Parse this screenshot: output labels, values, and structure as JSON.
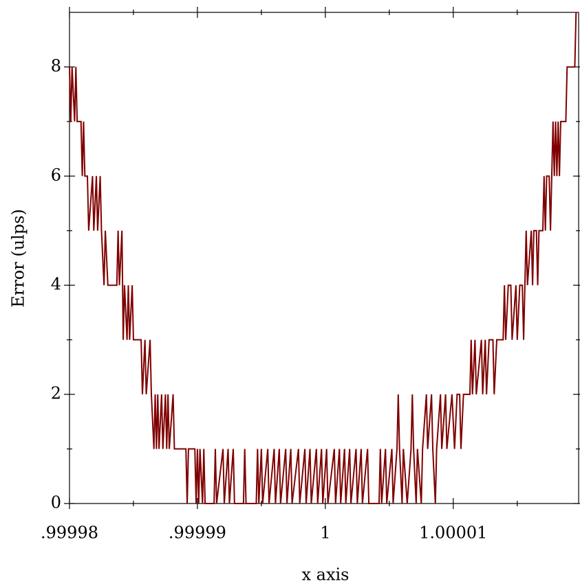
{
  "chart_data": {
    "type": "line",
    "xlabel": "x axis",
    "ylabel": "Error (ulps)",
    "xlim": [
      0.99998,
      1.0000198
    ],
    "ylim": [
      0,
      9
    ],
    "xticks": [
      {
        "value": 0.99998,
        "label": ".99998"
      },
      {
        "value": 0.99999,
        "label": ".99999"
      },
      1,
      1.00001
    ],
    "yticks": [
      0,
      2,
      4,
      6,
      8
    ],
    "xminorticks": [
      0.999985,
      0.999995,
      1.000005,
      1.000015
    ],
    "yminorticks": [
      1,
      3,
      5,
      7
    ],
    "x": [
      0.99998,
      0.9999801,
      0.9999802,
      0.9999804,
      0.9999805,
      0.9999806,
      0.9999809,
      0.999981,
      0.9999811,
      0.9999812,
      0.9999814,
      0.9999815,
      0.9999818,
      0.9999819,
      0.9999821,
      0.9999822,
      0.9999824,
      0.9999825,
      0.9999827,
      0.9999828,
      0.999983,
      0.9999837,
      0.9999838,
      0.9999839,
      0.9999841,
      0.9999842,
      0.9999843,
      0.9999845,
      0.9999846,
      0.9999847,
      0.9999849,
      0.999985,
      0.9999856,
      0.9999857,
      0.9999859,
      0.999986,
      0.9999863,
      0.9999864,
      0.9999866,
      0.9999867,
      0.9999868,
      0.9999869,
      0.999987,
      0.9999872,
      0.9999873,
      0.9999875,
      0.9999876,
      0.9999877,
      0.9999878,
      0.9999881,
      0.9999882,
      0.9999891,
      0.9999892,
      0.9999893,
      0.9999898,
      0.9999899,
      0.99999,
      0.9999901,
      0.9999902,
      0.9999904,
      0.9999905,
      0.9999906,
      0.9999913,
      0.9999914,
      0.9999915,
      0.999992,
      0.9999921,
      0.9999924,
      0.9999925,
      0.9999928,
      0.9999929,
      0.9999936,
      0.9999937,
      0.9999938,
      0.9999946,
      0.9999947,
      0.9999948,
      0.999995,
      0.9999951,
      0.9999955,
      0.9999956,
      0.999996,
      0.9999961,
      0.9999964,
      0.9999965,
      0.9999969,
      0.999997,
      0.9999973,
      0.9999974,
      0.9999979,
      0.999998,
      0.9999984,
      0.9999985,
      0.9999988,
      0.9999989,
      0.9999993,
      0.9999994,
      0.9999997,
      0.9999998,
      1.0000001,
      1.0000002,
      1.0000007,
      1.0000008,
      1.0000011,
      1.0000012,
      1.0000015,
      1.0000016,
      1.0000019,
      1.000002,
      1.0000024,
      1.0000025,
      1.0000028,
      1.0000029,
      1.0000033,
      1.0000034,
      1.0000042,
      1.0000043,
      1.0000044,
      1.0000047,
      1.0000048,
      1.0000052,
      1.0000053,
      1.0000056,
      1.0000057,
      1.0000058,
      1.000006,
      1.0000061,
      1.0000064,
      1.0000067,
      1.0000068,
      1.0000069,
      1.0000071,
      1.0000072,
      1.0000075,
      1.0000076,
      1.0000079,
      1.000008,
      1.0000083,
      1.0000084,
      1.0000086,
      1.0000087,
      1.000009,
      1.0000091,
      1.0000094,
      1.0000095,
      1.0000099,
      1.0000101,
      1.0000103,
      1.0000105,
      1.0000106,
      1.0000108,
      1.0000113,
      1.0000114,
      1.0000115,
      1.0000117,
      1.0000118,
      1.0000122,
      1.0000123,
      1.0000125,
      1.0000126,
      1.0000128,
      1.0000131,
      1.0000132,
      1.0000134,
      1.0000139,
      1.000014,
      1.0000141,
      1.0000143,
      1.0000145,
      1.0000146,
      1.0000149,
      1.000015,
      1.0000152,
      1.0000154,
      1.0000155,
      1.0000156,
      1.0000157,
      1.0000158,
      1.0000161,
      1.0000162,
      1.0000163,
      1.0000165,
      1.0000166,
      1.0000167,
      1.000017,
      1.0000171,
      1.0000172,
      1.0000173,
      1.0000175,
      1.0000176,
      1.0000177,
      1.0000178,
      1.0000179,
      1.000018,
      1.0000181,
      1.0000182,
      1.0000183,
      1.0000184,
      1.0000188,
      1.0000189,
      1.0000195,
      1.0000196
    ],
    "series": [
      {
        "color": "#7f0000",
        "values": [
          8,
          7,
          8,
          7,
          8,
          7,
          7,
          6,
          7,
          6,
          6,
          5,
          6,
          5,
          6,
          5,
          6,
          5,
          4,
          5,
          4,
          4,
          5,
          4,
          5,
          3,
          4,
          3,
          4,
          3,
          4,
          3,
          3,
          2,
          3,
          2,
          3,
          2,
          1,
          2,
          1,
          2,
          1,
          2,
          1,
          2,
          1,
          2,
          1,
          2,
          1,
          1,
          0,
          1,
          1,
          0,
          1,
          0,
          1,
          0,
          1,
          0,
          0,
          1,
          0,
          1,
          0,
          1,
          0,
          1,
          0,
          0,
          1,
          0,
          0,
          1,
          0,
          1,
          0,
          1,
          0,
          1,
          0,
          1,
          0,
          1,
          0,
          1,
          0,
          1,
          0,
          1,
          0,
          1,
          0,
          1,
          0,
          1,
          0,
          1,
          0,
          1,
          0,
          1,
          0,
          1,
          0,
          1,
          0,
          1,
          0,
          1,
          0,
          1,
          0,
          0,
          1,
          0,
          1,
          0,
          1,
          0,
          1,
          2,
          1,
          0,
          1,
          0,
          1,
          2,
          1,
          0,
          1,
          0,
          1,
          2,
          1,
          2,
          1,
          0,
          1,
          2,
          1,
          2,
          1,
          2,
          1,
          2,
          2,
          1,
          2,
          2,
          3,
          2,
          3,
          2,
          3,
          2,
          3,
          2,
          3,
          3,
          2,
          3,
          3,
          4,
          3,
          4,
          4,
          3,
          4,
          3,
          4,
          4,
          3,
          4,
          5,
          4,
          5,
          4,
          5,
          5,
          4,
          5,
          5,
          6,
          5,
          6,
          6,
          5,
          6,
          7,
          6,
          7,
          6,
          7,
          6,
          7,
          7,
          8,
          8,
          9
        ]
      }
    ]
  }
}
